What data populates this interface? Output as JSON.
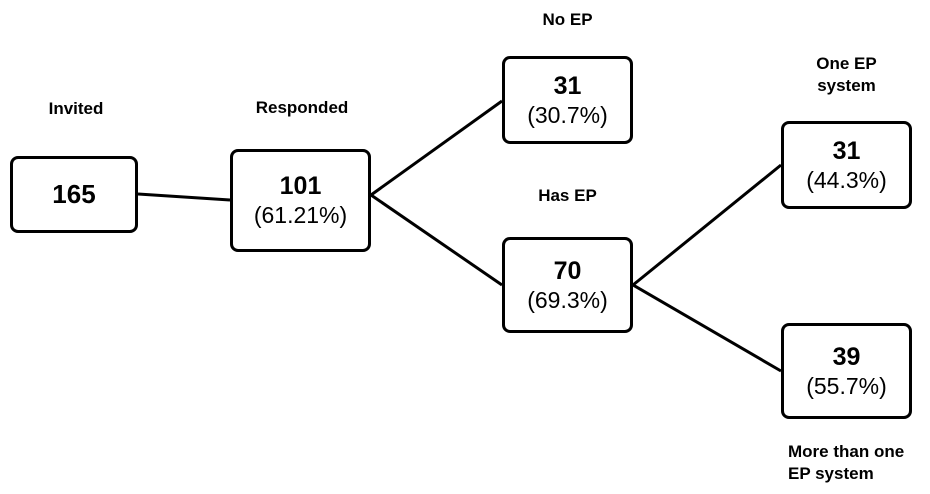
{
  "nodes": {
    "invited": {
      "label": "Invited",
      "count": "165",
      "percent": ""
    },
    "responded": {
      "label": "Responded",
      "count": "101",
      "percent": "(61.21%)"
    },
    "no_ep": {
      "label": "No EP",
      "count": "31",
      "percent": "(30.7%)"
    },
    "has_ep": {
      "label": "Has EP",
      "count": "70",
      "percent": "(69.3%)"
    },
    "one_ep": {
      "label": "One EP system",
      "count": "31",
      "percent": "(44.3%)"
    },
    "multi_ep": {
      "label": "More than one EP system",
      "count": "39",
      "percent": "(55.7%)"
    }
  },
  "edges": [
    {
      "from": "invited",
      "to": "responded"
    },
    {
      "from": "responded",
      "to": "no_ep"
    },
    {
      "from": "responded",
      "to": "has_ep"
    },
    {
      "from": "has_ep",
      "to": "one_ep"
    },
    {
      "from": "has_ep",
      "to": "multi_ep"
    }
  ],
  "colors": {
    "line": "#000000",
    "box_border": "#000000",
    "background": "#ffffff"
  }
}
